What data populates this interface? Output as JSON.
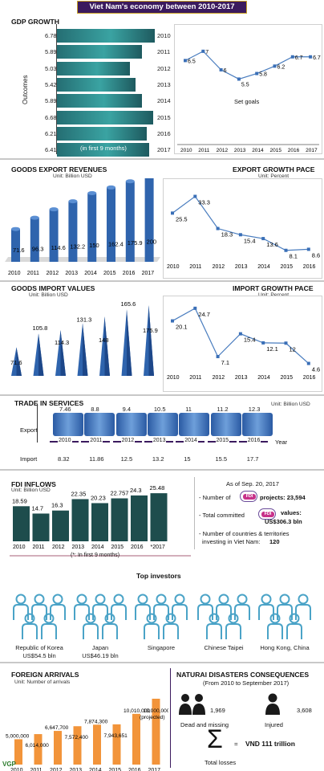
{
  "title": "Viet Nam's economy between 2010-2017",
  "years_8": [
    "2010",
    "2011",
    "2012",
    "2013",
    "2014",
    "2015",
    "2016",
    "2017"
  ],
  "years_7": [
    "2010",
    "2011",
    "2012",
    "2013",
    "2014",
    "2015",
    "2016"
  ],
  "gdp": {
    "heading": "GDP GROWTH",
    "axis_label": "Outcomes",
    "labels": [
      "6.78",
      "5.89",
      "5.03",
      "5.42",
      "5.89",
      "6.68",
      "6.21",
      "6.41"
    ],
    "note": "(in first 9 months)",
    "goals_label": "Set goals",
    "goal_labels": [
      "6.5",
      "7",
      "6",
      "5.5",
      "5.8",
      "6.2",
      "6.7",
      "6.7"
    ]
  },
  "export_rev": {
    "heading": "GOODS EXPORT REVENUES",
    "unit": "Unit: Billion USD",
    "labels": [
      "71.6",
      "96.3",
      "114.6",
      "132.2",
      "150",
      "162.4",
      "175.9",
      "200"
    ]
  },
  "export_pace": {
    "heading": "EXPORT GROWTH PACE",
    "unit": "Unit: Percent",
    "labels": [
      "25.5",
      "33.3",
      "18.3",
      "15.4",
      "13.6",
      "8.1",
      "8.6"
    ]
  },
  "import_val": {
    "heading": "GOODS IMPORT VALUES",
    "unit": "Unit: Billion USD",
    "labels": [
      "71.6",
      "105.8",
      "114.3",
      "131.3",
      "148",
      "165.6",
      "175.9"
    ]
  },
  "import_pace": {
    "heading": "IMPORT GROWTH PACE",
    "unit": "Unit: Percent",
    "labels": [
      "20.1",
      "24.7",
      "7.1",
      "15.4",
      "12.1",
      "12",
      "4.6"
    ]
  },
  "services": {
    "heading": "TRADE IN SERVICES",
    "unit": "Unit: Billion USD",
    "export_label": "Export",
    "import_label": "Import",
    "year_label": "Year",
    "export": [
      "7.46",
      "8.8",
      "9.4",
      "10.5",
      "11",
      "11.2",
      "12.3"
    ],
    "import": [
      "8.32",
      "11.86",
      "12.5",
      "13.2",
      "15",
      "15.5",
      "17.7"
    ]
  },
  "fdi": {
    "heading": "FDI INFLOWS",
    "unit": "Unit: Billion USD",
    "labels": [
      "18.59",
      "14.7",
      "16.3",
      "22.35",
      "20.23",
      "22.757",
      "24.3",
      "25.48"
    ],
    "years": [
      "2010",
      "2011",
      "2012",
      "2013",
      "2014",
      "2015",
      "2016",
      "*2017"
    ],
    "note": "(*: In first 9 months)",
    "asof": "As of Sep. 20, 2017",
    "projects_label": "- Number of",
    "projects_value": "projects: 23,594",
    "committed_label": "- Total committed",
    "committed_value_1": "values:",
    "committed_value_2": "US$306.3 bln",
    "countries_label_1": "- Number of countries & territories",
    "countries_label_2": "investing in Viet Nam:",
    "countries_value": "120",
    "logo": "FDI"
  },
  "investors": {
    "heading": "Top investors",
    "items": [
      {
        "name": "Republic of Korea",
        "value": "US$54.5 bln"
      },
      {
        "name": "Japan",
        "value": "US$46.19 bln"
      },
      {
        "name": "Singapore",
        "value": ""
      },
      {
        "name": "Chinese Taipei",
        "value": ""
      },
      {
        "name": "Hong Kong, China",
        "value": ""
      }
    ]
  },
  "arrivals": {
    "heading": "FOREIGN ARRIVALS",
    "unit": "Unit: Number of arrivals",
    "labels": [
      "5,000,000",
      "6,014,000",
      "6,647,700",
      "7,572,400",
      "7,874,300",
      "7,943,651",
      "10,010,000",
      "13,000,000"
    ],
    "projected": "(projected)"
  },
  "disasters": {
    "heading": "NATURAl DISASTERS CONSEQUENCES",
    "period": "(From 2010 to September 2017)",
    "dead_value": "1,969",
    "dead_label": "Dead and missing",
    "injured_value": "3,608",
    "injured_label": "Injured",
    "sigma": "Σ",
    "eq": "=",
    "losses_value": "VND 111 trillion",
    "losses_label": "Total losses"
  },
  "brand": "VGP",
  "colors": {
    "header_bg": "#3b1a5e",
    "teal": "#2f8f92",
    "blue": "#3a6fb7",
    "fdi_green": "#1f4f4f",
    "orange": "#f2943a",
    "icon_teal": "#4aa3c7"
  },
  "chart_data": [
    {
      "type": "bar",
      "title": "GDP GROWTH",
      "ylabel": "Outcomes",
      "categories": [
        "2010",
        "2011",
        "2012",
        "2013",
        "2014",
        "2015",
        "2016",
        "2017"
      ],
      "values": [
        6.78,
        5.89,
        5.03,
        5.42,
        5.89,
        6.68,
        6.21,
        6.41
      ]
    },
    {
      "type": "line",
      "xlabel": "Set goals",
      "categories": [
        "2010",
        "2011",
        "2012",
        "2013",
        "2014",
        "2015",
        "2016",
        "2017"
      ],
      "values": [
        6.5,
        7,
        6,
        5.5,
        5.8,
        6.2,
        6.7,
        6.7
      ]
    },
    {
      "type": "bar",
      "title": "GOODS EXPORT REVENUES",
      "categories": [
        "2010",
        "2011",
        "2012",
        "2013",
        "2014",
        "2015",
        "2016",
        "2017"
      ],
      "values": [
        71.6,
        96.3,
        114.6,
        132.2,
        150,
        162.4,
        175.9,
        200
      ]
    },
    {
      "type": "line",
      "title": "EXPORT GROWTH PACE",
      "categories": [
        "2010",
        "2011",
        "2012",
        "2013",
        "2014",
        "2015",
        "2016"
      ],
      "values": [
        25.5,
        33.3,
        18.3,
        15.4,
        13.6,
        8.1,
        8.6
      ]
    },
    {
      "type": "bar",
      "title": "GOODS IMPORT VALUES",
      "categories": [
        "2010",
        "2011",
        "2012",
        "2013",
        "2014",
        "2015",
        "2016"
      ],
      "values": [
        71.6,
        105.8,
        114.3,
        131.3,
        148,
        165.6,
        175.9
      ]
    },
    {
      "type": "line",
      "title": "IMPORT GROWTH PACE",
      "categories": [
        "2010",
        "2011",
        "2012",
        "2013",
        "2014",
        "2015",
        "2016"
      ],
      "values": [
        20.1,
        24.7,
        7.1,
        15.4,
        12.1,
        12,
        4.6
      ]
    },
    {
      "type": "table",
      "title": "TRADE IN SERVICES",
      "categories": [
        "2010",
        "2011",
        "2012",
        "2013",
        "2014",
        "2015",
        "2016"
      ],
      "series": [
        {
          "name": "Export",
          "values": [
            7.46,
            8.8,
            9.4,
            10.5,
            11,
            11.2,
            12.3
          ]
        },
        {
          "name": "Import",
          "values": [
            8.32,
            11.86,
            12.5,
            13.2,
            15,
            15.5,
            17.7
          ]
        }
      ]
    },
    {
      "type": "bar",
      "title": "FDI INFLOWS",
      "categories": [
        "2010",
        "2011",
        "2012",
        "2013",
        "2014",
        "2015",
        "2016",
        "*2017"
      ],
      "values": [
        18.59,
        14.7,
        16.3,
        22.35,
        20.23,
        22.757,
        24.3,
        25.48
      ]
    },
    {
      "type": "bar",
      "title": "FOREIGN ARRIVALS",
      "categories": [
        "2010",
        "2011",
        "2012",
        "2013",
        "2014",
        "2015",
        "2016",
        "2017"
      ],
      "values": [
        5000000,
        6014000,
        6647700,
        7572400,
        7874300,
        7943651,
        10010000,
        13000000
      ]
    }
  ]
}
